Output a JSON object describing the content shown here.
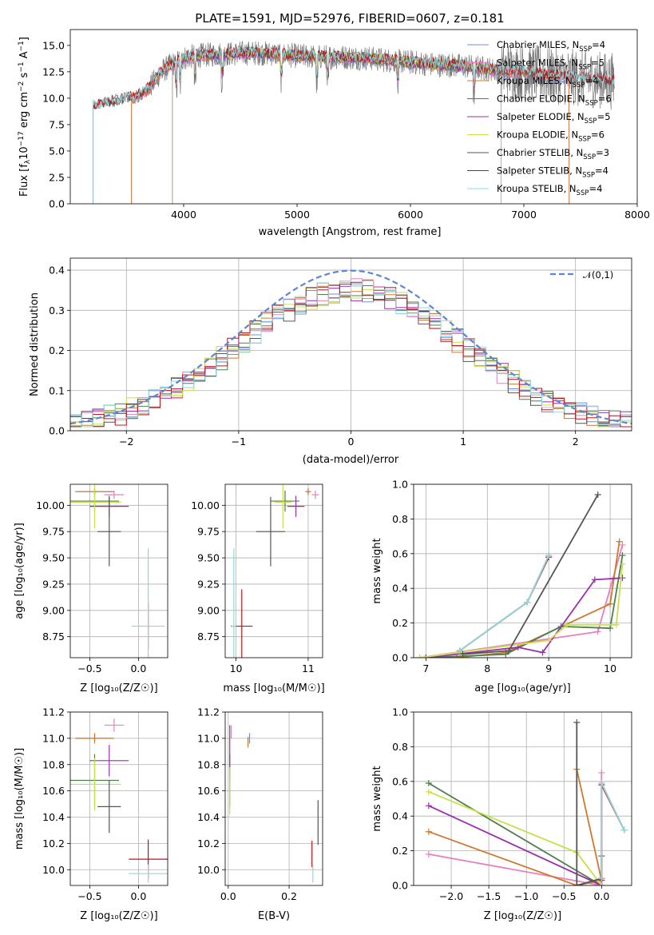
{
  "title": "PLATE=1591, MJD=52976, FIBERID=0607, z=0.181",
  "colors": {
    "chabrier_miles": "#6b8fe0",
    "salpeter_miles": "#e87fbf",
    "kroupa_miles": "#d0782c",
    "chabrier_elodie": "#4f7e4f",
    "salpeter_elodie": "#9a2fae",
    "kroupa_elodie": "#c8e04a",
    "chabrier_stelib": "#555555",
    "salpeter_stelib": "#c0141c",
    "kroupa_stelib": "#8fd8d8",
    "normal": "#5b86d8"
  },
  "legend": [
    {
      "key": "chabrier_miles",
      "text": "Chabrier MILES, N",
      "sub": "SSP",
      "tail": "=4"
    },
    {
      "key": "salpeter_miles",
      "text": "Salpeter MILES, N",
      "sub": "SSP",
      "tail": "=5"
    },
    {
      "key": "kroupa_miles",
      "text": "Kroupa MILES, N",
      "sub": "SSP",
      "tail": "=4"
    },
    {
      "key": "chabrier_elodie",
      "text": "Chabrier ELODIE, N",
      "sub": "SSP",
      "tail": "=6"
    },
    {
      "key": "salpeter_elodie",
      "text": "Salpeter ELODIE, N",
      "sub": "SSP",
      "tail": "=5"
    },
    {
      "key": "kroupa_elodie",
      "text": "Kroupa ELODIE, N",
      "sub": "SSP",
      "tail": "=6"
    },
    {
      "key": "chabrier_stelib",
      "text": "Chabrier STELIB, N",
      "sub": "SSP",
      "tail": "=3"
    },
    {
      "key": "salpeter_stelib",
      "text": "Salpeter STELIB, N",
      "sub": "SSP",
      "tail": "=4"
    },
    {
      "key": "kroupa_stelib",
      "text": "Kroupa STELIB, N",
      "sub": "SSP",
      "tail": "=4"
    }
  ],
  "chart_data": [
    {
      "id": "spectrum",
      "type": "line",
      "title": "PLATE=1591, MJD=52976, FIBERID=0607, z=0.181",
      "xlabel": "wavelength [Angstrom, rest frame]",
      "ylabel": "Flux [f_λ 10^-17 erg cm^-2 s^-1 A^-1]",
      "xlim": [
        3000,
        8000
      ],
      "ylim": [
        0,
        16.5
      ],
      "xticks": [
        4000,
        5000,
        6000,
        7000,
        8000
      ],
      "yticks": [
        0.0,
        2.5,
        5.0,
        7.5,
        10.0,
        12.5,
        15.0
      ],
      "grid": false,
      "legend_position": "right",
      "data_anchors": {
        "wavelength": [
          3200,
          3300,
          3400,
          3500,
          3600,
          3700,
          3800,
          3900,
          4000,
          4100,
          4200,
          4400,
          4600,
          4800,
          5000,
          5200,
          5400,
          5600,
          5800,
          6000,
          6200,
          6400,
          6600,
          6800,
          7000,
          7200,
          7400,
          7600,
          7800
        ],
        "flux": [
          9.2,
          9.5,
          9.7,
          10.0,
          10.2,
          11.0,
          12.5,
          13.2,
          13.8,
          14.0,
          14.1,
          14.2,
          14.3,
          14.2,
          14.0,
          13.9,
          13.9,
          13.8,
          13.6,
          13.4,
          13.2,
          13.1,
          12.9,
          12.6,
          12.5,
          12.2,
          12.0,
          11.8,
          11.6
        ]
      },
      "model_start_wavelength": {
        "miles": 3540,
        "elodie": 3900,
        "stelib": 3200
      },
      "model_end_wavelength": {
        "miles": 7400,
        "elodie": 6800,
        "stelib": 7800
      }
    },
    {
      "id": "residuals",
      "type": "line",
      "xlabel": "(data-model)/error",
      "ylabel": "Normed distribution",
      "xlim": [
        -2.5,
        2.5
      ],
      "ylim": [
        0,
        0.43
      ],
      "xticks": [
        -2,
        -1,
        0,
        1,
        2
      ],
      "yticks": [
        0.0,
        0.1,
        0.2,
        0.3,
        0.4
      ],
      "grid": true,
      "legend": "𝒩(0,1)",
      "legend_position": "top-right",
      "bin_width": 0.1,
      "reference_curve": "normal pdf mean 0 sd 1"
    },
    {
      "id": "age_vs_Z",
      "type": "scatter",
      "xlabel": "Z [log10(Z/Z☉)]",
      "ylabel": "age [log10(age/yr)]",
      "xlim": [
        -0.7,
        0.3
      ],
      "ylim": [
        8.55,
        10.2
      ],
      "xticks": [
        -0.5,
        0.0
      ],
      "yticks": [
        8.75,
        9.0,
        9.25,
        9.5,
        9.75,
        10.0
      ],
      "grid": true,
      "points": [
        {
          "key": "chabrier_miles",
          "x": -0.45,
          "xerr": 0.18,
          "y": 10.13,
          "yerr": 0.03
        },
        {
          "key": "salpeter_miles",
          "x": -0.25,
          "xerr": 0.1,
          "y": 10.1,
          "yerr": 0.04
        },
        {
          "key": "kroupa_miles",
          "x": -0.45,
          "xerr": 0.2,
          "y": 10.13,
          "yerr": 0.03
        },
        {
          "key": "chabrier_elodie",
          "x": -0.45,
          "xerr": 0.25,
          "y": 10.04,
          "yerr": 0.1
        },
        {
          "key": "salpeter_elodie",
          "x": -0.3,
          "xerr": 0.2,
          "y": 9.99,
          "yerr": 0.1
        },
        {
          "key": "kroupa_elodie",
          "x": -0.45,
          "xerr": 0.27,
          "y": 10.03,
          "yerr": 0.25
        },
        {
          "key": "chabrier_stelib",
          "x": -0.3,
          "xerr": 0.12,
          "y": 9.75,
          "yerr": 0.33
        },
        {
          "key": "salpeter_stelib",
          "x": 0.1,
          "xerr": 0.01,
          "y": 8.85,
          "yerr": 0.22
        },
        {
          "key": "kroupa_stelib",
          "x": 0.1,
          "xerr": 0.17,
          "y": 8.85,
          "yerr": 0.74
        }
      ]
    },
    {
      "id": "age_vs_mass",
      "type": "scatter",
      "xlabel": "mass [log10(M/M☉)]",
      "ylabel": "",
      "xlim": [
        9.85,
        11.2
      ],
      "ylim": [
        8.55,
        10.2
      ],
      "xticks": [
        10,
        11
      ],
      "yticks": [
        8.75,
        9.0,
        9.25,
        9.5,
        9.75,
        10.0
      ],
      "grid": true,
      "points": [
        {
          "key": "chabrier_miles",
          "x": 11.0,
          "xerr": 0.02,
          "y": 10.13,
          "yerr": 0.03
        },
        {
          "key": "salpeter_miles",
          "x": 11.1,
          "xerr": 0.05,
          "y": 10.1,
          "yerr": 0.04
        },
        {
          "key": "kroupa_miles",
          "x": 11.0,
          "xerr": 0.04,
          "y": 10.13,
          "yerr": 0.03
        },
        {
          "key": "chabrier_elodie",
          "x": 10.68,
          "xerr": 0.2,
          "y": 10.04,
          "yerr": 0.1
        },
        {
          "key": "salpeter_elodie",
          "x": 10.83,
          "xerr": 0.12,
          "y": 9.99,
          "yerr": 0.1
        },
        {
          "key": "kroupa_elodie",
          "x": 10.65,
          "xerr": 0.12,
          "y": 10.03,
          "yerr": 0.25
        },
        {
          "key": "chabrier_stelib",
          "x": 10.48,
          "xerr": 0.2,
          "y": 9.75,
          "yerr": 0.33
        },
        {
          "key": "salpeter_stelib",
          "x": 10.08,
          "xerr": 0.15,
          "y": 8.85,
          "yerr": 0.35
        },
        {
          "key": "kroupa_stelib",
          "x": 9.97,
          "xerr": 0.03,
          "y": 8.85,
          "yerr": 0.74
        }
      ]
    },
    {
      "id": "massweight_vs_age",
      "type": "line",
      "xlabel": "age [log10(age/yr)]",
      "ylabel": "mass weight",
      "xlim": [
        6.8,
        10.35
      ],
      "ylim": [
        0,
        1.0
      ],
      "xticks": [
        7,
        8,
        9,
        10
      ],
      "yticks": [
        0.0,
        0.2,
        0.4,
        0.6,
        0.8,
        1.0
      ],
      "grid": true,
      "series": [
        {
          "key": "chabrier_miles",
          "x": [
            7.55,
            8.65,
            9.0
          ],
          "y": [
            0.04,
            0.32,
            0.59
          ]
        },
        {
          "key": "salpeter_miles",
          "x": [
            6.9,
            9.8,
            10.2
          ],
          "y": [
            0.0,
            0.15,
            0.65
          ]
        },
        {
          "key": "kroupa_miles",
          "x": [
            7.5,
            8.3,
            10.0,
            10.15
          ],
          "y": [
            0.0,
            0.03,
            0.31,
            0.67
          ]
        },
        {
          "key": "chabrier_elodie",
          "x": [
            7.0,
            8.3,
            9.2,
            10.0,
            10.2
          ],
          "y": [
            0.0,
            0.02,
            0.18,
            0.17,
            0.59
          ]
        },
        {
          "key": "salpeter_elodie",
          "x": [
            7.0,
            8.5,
            8.9,
            9.75,
            10.2
          ],
          "y": [
            0.0,
            0.06,
            0.03,
            0.45,
            0.46
          ]
        },
        {
          "key": "kroupa_elodie",
          "x": [
            6.9,
            9.0,
            9.3,
            10.1,
            10.2
          ],
          "y": [
            0.0,
            0.1,
            0.19,
            0.19,
            0.54
          ]
        },
        {
          "key": "chabrier_stelib",
          "x": [
            7.6,
            8.35,
            9.8
          ],
          "y": [
            0.02,
            0.04,
            0.94
          ]
        },
        {
          "key": "salpeter_stelib",
          "x": [
            7.55,
            8.65,
            9.0
          ],
          "y": [
            0.04,
            0.32,
            0.58
          ]
        },
        {
          "key": "kroupa_stelib",
          "x": [
            7.55,
            8.65,
            9.0
          ],
          "y": [
            0.04,
            0.32,
            0.59
          ]
        }
      ]
    },
    {
      "id": "mass_vs_Z",
      "type": "scatter",
      "xlabel": "Z [log10(Z/Z☉)]",
      "ylabel": "mass [log10(M/M☉)]",
      "xlim": [
        -0.7,
        0.3
      ],
      "ylim": [
        9.88,
        11.2
      ],
      "xticks": [
        -0.5,
        0.0
      ],
      "yticks": [
        10.0,
        10.2,
        10.4,
        10.6,
        10.8,
        11.0,
        11.2
      ],
      "grid": true,
      "points": [
        {
          "key": "chabrier_miles",
          "x": -0.45,
          "xerr": 0.18,
          "y": 11.0,
          "yerr": 0.02
        },
        {
          "key": "salpeter_miles",
          "x": -0.25,
          "xerr": 0.1,
          "y": 11.1,
          "yerr": 0.05
        },
        {
          "key": "kroupa_miles",
          "x": -0.45,
          "xerr": 0.2,
          "y": 11.0,
          "yerr": 0.04
        },
        {
          "key": "chabrier_elodie",
          "x": -0.45,
          "xerr": 0.25,
          "y": 10.68,
          "yerr": 0.2
        },
        {
          "key": "salpeter_elodie",
          "x": -0.3,
          "xerr": 0.2,
          "y": 10.83,
          "yerr": 0.12
        },
        {
          "key": "kroupa_elodie",
          "x": -0.45,
          "xerr": 0.27,
          "y": 10.65,
          "yerr": 0.2
        },
        {
          "key": "chabrier_stelib",
          "x": -0.3,
          "xerr": 0.12,
          "y": 10.48,
          "yerr": 0.2
        },
        {
          "key": "salpeter_stelib",
          "x": 0.1,
          "xerr": 0.2,
          "y": 10.08,
          "yerr": 0.15
        },
        {
          "key": "kroupa_stelib",
          "x": 0.1,
          "xerr": 0.2,
          "y": 9.97,
          "yerr": 0.07
        }
      ]
    },
    {
      "id": "mass_vs_ebv",
      "type": "scatter",
      "xlabel": "E(B-V)",
      "ylabel": "",
      "xlim": [
        -0.01,
        0.31
      ],
      "ylim": [
        9.88,
        11.2
      ],
      "xticks": [
        0.0,
        0.2
      ],
      "yticks": [
        10.0,
        10.2,
        10.4,
        10.6,
        10.8,
        11.0,
        11.2
      ],
      "grid": true,
      "points": [
        {
          "key": "chabrier_miles",
          "x": 0.07,
          "xerr": 0.0,
          "y": 11.0,
          "yerr": 0.04
        },
        {
          "key": "salpeter_miles",
          "x": 0.01,
          "xerr": 0.0,
          "y": 11.05,
          "yerr": 0.05
        },
        {
          "key": "kroupa_miles",
          "x": 0.065,
          "xerr": 0.0,
          "y": 10.97,
          "yerr": 0.04
        },
        {
          "key": "chabrier_elodie",
          "x": 0.005,
          "xerr": 0.0,
          "y": 10.68,
          "yerr": 0.2
        },
        {
          "key": "salpeter_elodie",
          "x": 0.005,
          "xerr": 0.0,
          "y": 10.9,
          "yerr": 0.2
        },
        {
          "key": "kroupa_elodie",
          "x": 0.005,
          "xerr": 0.0,
          "y": 10.6,
          "yerr": 0.18
        },
        {
          "key": "chabrier_stelib",
          "x": 0.295,
          "xerr": 0.0,
          "y": 10.36,
          "yerr": 0.17
        },
        {
          "key": "salpeter_stelib",
          "x": 0.275,
          "xerr": 0.0,
          "y": 10.12,
          "yerr": 0.1
        },
        {
          "key": "kroupa_stelib",
          "x": 0.278,
          "xerr": 0.0,
          "y": 9.97,
          "yerr": 0.07
        }
      ]
    },
    {
      "id": "massweight_vs_Z",
      "type": "line",
      "xlabel": "Z [log10(Z/Z☉)]",
      "ylabel": "mass weight",
      "xlim": [
        -2.5,
        0.4
      ],
      "ylim": [
        0,
        1.0
      ],
      "xticks": [
        -2.0,
        -1.5,
        -1.0,
        -0.5,
        0.0
      ],
      "yticks": [
        0.0,
        0.2,
        0.4,
        0.6,
        0.8,
        1.0
      ],
      "grid": true,
      "series": [
        {
          "key": "chabrier_miles",
          "x": [
            0.0,
            0.0,
            0.3
          ],
          "y": [
            0.04,
            0.59,
            0.32
          ]
        },
        {
          "key": "salpeter_miles",
          "x": [
            -2.3,
            0.0,
            0.0
          ],
          "y": [
            0.18,
            0.0,
            0.65
          ]
        },
        {
          "key": "kroupa_miles",
          "x": [
            -2.3,
            -0.33,
            0.0,
            -0.33
          ],
          "y": [
            0.31,
            0.0,
            0.03,
            0.67
          ]
        },
        {
          "key": "chabrier_elodie",
          "x": [
            -2.3,
            0.0,
            0.0
          ],
          "y": [
            0.59,
            0.0,
            0.17
          ]
        },
        {
          "key": "salpeter_elodie",
          "x": [
            -2.3,
            0.0,
            0.0
          ],
          "y": [
            0.46,
            0.0,
            0.03
          ]
        },
        {
          "key": "kroupa_elodie",
          "x": [
            -2.3,
            -0.33,
            0.0
          ],
          "y": [
            0.54,
            0.19,
            0.0
          ]
        },
        {
          "key": "chabrier_stelib",
          "x": [
            -0.33,
            -0.33,
            0.0
          ],
          "y": [
            0.94,
            0.0,
            0.04
          ]
        },
        {
          "key": "salpeter_stelib",
          "x": [
            0.0,
            0.0,
            0.3
          ],
          "y": [
            0.04,
            0.58,
            0.32
          ]
        },
        {
          "key": "kroupa_stelib",
          "x": [
            0.0,
            0.0,
            0.3
          ],
          "y": [
            0.04,
            0.59,
            0.32
          ]
        }
      ]
    }
  ]
}
